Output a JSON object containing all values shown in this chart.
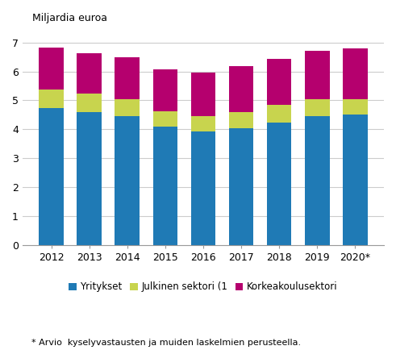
{
  "years": [
    "2012",
    "2013",
    "2014",
    "2015",
    "2016",
    "2017",
    "2018",
    "2019",
    "2020*"
  ],
  "yritykset": [
    4.72,
    4.6,
    4.44,
    4.08,
    3.93,
    4.03,
    4.23,
    4.45,
    4.5
  ],
  "julkinen": [
    0.65,
    0.64,
    0.6,
    0.55,
    0.52,
    0.57,
    0.62,
    0.6,
    0.55
  ],
  "korkeakoulu": [
    1.45,
    1.39,
    1.46,
    1.44,
    1.52,
    1.57,
    1.58,
    1.65,
    1.75
  ],
  "colors": {
    "yritykset": "#1f7ab5",
    "julkinen": "#c8d44e",
    "korkeakoulu": "#b5006e"
  },
  "top_label": "Miljardia euroa",
  "ylim": [
    0,
    7.5
  ],
  "yticks": [
    0,
    1,
    2,
    3,
    4,
    5,
    6,
    7
  ],
  "legend_labels": [
    "Yritykset",
    "Julkinen sektori (1",
    "Korkeakoulusektori"
  ],
  "footnote": "* Arvio  kyselyvastausten ja muiden laskelmien perusteella."
}
